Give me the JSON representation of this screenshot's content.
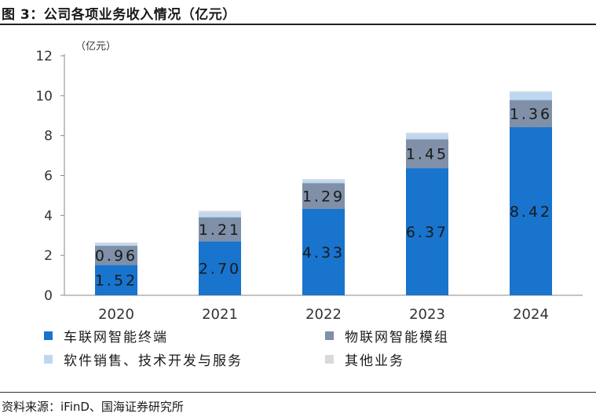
{
  "figure_title": "图 3：公司各项业务收入情况（亿元）",
  "source": "资料来源：iFinD、国海证券研究所",
  "chart_data": {
    "type": "bar",
    "stacked": true,
    "title": "",
    "unit_label": "（亿元）",
    "xlabel": "",
    "ylabel": "",
    "ylim": [
      0,
      12
    ],
    "yticks": [
      0,
      2,
      4,
      6,
      8,
      10,
      12
    ],
    "grid": false,
    "legend_position": "bottom",
    "categories": [
      "2020",
      "2021",
      "2022",
      "2023",
      "2024"
    ],
    "series": [
      {
        "name": "车联网智能终端",
        "color": "#1874CD",
        "values": [
          1.52,
          2.7,
          4.33,
          6.37,
          8.42
        ],
        "labels": [
          "1.52",
          "2.70",
          "4.33",
          "6.37",
          "8.42"
        ],
        "label_color": "#1a1a1a"
      },
      {
        "name": "物联网智能模组",
        "color": "#7F90A8",
        "values": [
          0.96,
          1.21,
          1.29,
          1.45,
          1.36
        ],
        "labels": [
          "0.96",
          "1.21",
          "1.29",
          "1.45",
          "1.36"
        ],
        "label_color": "#1a1a1a"
      },
      {
        "name": "软件销售、技术开发与服务",
        "color": "#BDD7F2",
        "values": [
          0.12,
          0.22,
          0.15,
          0.25,
          0.4
        ],
        "labels": [],
        "label_color": "#1a1a1a"
      },
      {
        "name": "其他业务",
        "color": "#D9D9D9",
        "values": [
          0.05,
          0.1,
          0.05,
          0.08,
          0.04
        ],
        "labels": [],
        "label_color": "#1a1a1a"
      }
    ]
  }
}
